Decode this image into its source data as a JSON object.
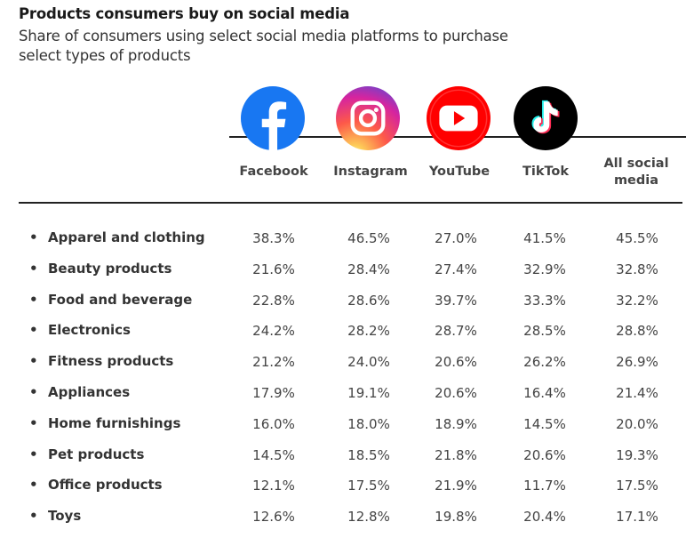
{
  "title": "Products consumers buy on social media",
  "subtitle": "Share of consumers using select social media platforms to purchase select types of products",
  "logos": [
    "facebook-logo",
    "instagram-logo",
    "youtube-logo",
    "tiktok-logo"
  ],
  "colors": {
    "facebook": "#1877F2",
    "youtube": "#FF0000",
    "tiktok": "#000000",
    "instagram_start": "#FEDA75",
    "instagram_end": "#D62976"
  },
  "chart_data": {
    "type": "table",
    "title": "Products consumers buy on social media",
    "subtitle": "Share of consumers using select social media platforms to purchase select types of products",
    "columns": [
      "Facebook",
      "Instagram",
      "YouTube",
      "TikTok",
      "All social media"
    ],
    "rows": [
      {
        "label": "Apparel and clothing",
        "values": [
          "38.3%",
          "46.5%",
          "27.0%",
          "41.5%",
          "45.5%"
        ]
      },
      {
        "label": "Beauty products",
        "values": [
          "21.6%",
          "28.4%",
          "27.4%",
          "32.9%",
          "32.8%"
        ]
      },
      {
        "label": "Food and beverage",
        "values": [
          "22.8%",
          "28.6%",
          "39.7%",
          "33.3%",
          "32.2%"
        ]
      },
      {
        "label": "Electronics",
        "values": [
          "24.2%",
          "28.2%",
          "28.7%",
          "28.5%",
          "28.8%"
        ]
      },
      {
        "label": "Fitness products",
        "values": [
          "21.2%",
          "24.0%",
          "20.6%",
          "26.2%",
          "26.9%"
        ]
      },
      {
        "label": "Appliances",
        "values": [
          "17.9%",
          "19.1%",
          "20.6%",
          "16.4%",
          "21.4%"
        ]
      },
      {
        "label": "Home furnishings",
        "values": [
          "16.0%",
          "18.0%",
          "18.9%",
          "14.5%",
          "20.0%"
        ]
      },
      {
        "label": "Pet products",
        "values": [
          "14.5%",
          "18.5%",
          "21.8%",
          "20.6%",
          "19.3%"
        ]
      },
      {
        "label": "Office products",
        "values": [
          "12.1%",
          "17.5%",
          "21.9%",
          "11.7%",
          "17.5%"
        ]
      },
      {
        "label": "Toys",
        "values": [
          "12.6%",
          "12.8%",
          "19.8%",
          "20.4%",
          "17.1%"
        ]
      }
    ]
  }
}
